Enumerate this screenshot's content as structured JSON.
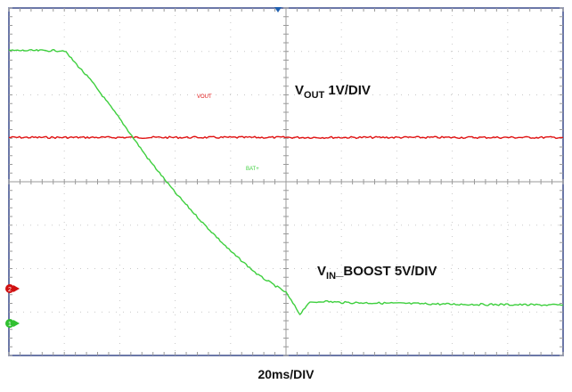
{
  "chart_data": {
    "type": "line",
    "title": "",
    "xlabel": "20ms/DIV",
    "ylabel": "",
    "grid": true,
    "divisions": {
      "x": 10,
      "y": 8
    },
    "xlim": [
      0,
      10
    ],
    "ylim": [
      -4,
      4
    ],
    "x_units": "divisions",
    "y_units": "divisions",
    "series": [
      {
        "name": "VOUT",
        "color": "#e01010",
        "scale": "1V/DIV",
        "label_main": "V",
        "label_sub": "OUT",
        "label_rest": " 1V/DIV",
        "ground_marker": "2",
        "x": [
          0,
          10
        ],
        "y": [
          1.02,
          1.02
        ]
      },
      {
        "name": "BAT+",
        "color": "#3ecf3e",
        "scale": "5V/DIV",
        "label_main": "V",
        "label_sub": "IN",
        "label_rest": "_BOOST 5V/DIV",
        "ground_marker": "1",
        "x": [
          0,
          0.5,
          1.0,
          1.5,
          2.0,
          2.5,
          3.0,
          3.5,
          4.0,
          4.5,
          5.0,
          5.25,
          5.4,
          5.65,
          6.0,
          7.0,
          8.0,
          9.0,
          10.0
        ],
        "y": [
          3.02,
          3.02,
          3.02,
          2.3,
          1.45,
          0.55,
          -0.25,
          -0.95,
          -1.6,
          -2.15,
          -2.55,
          -3.05,
          -2.8,
          -2.75,
          -2.78,
          -2.8,
          -2.82,
          -2.83,
          -2.84
        ]
      }
    ]
  },
  "trace_tags": {
    "vout": "VOUT",
    "bat": "BAT+"
  },
  "markers": {
    "ch2": "2",
    "ch1": "1"
  }
}
